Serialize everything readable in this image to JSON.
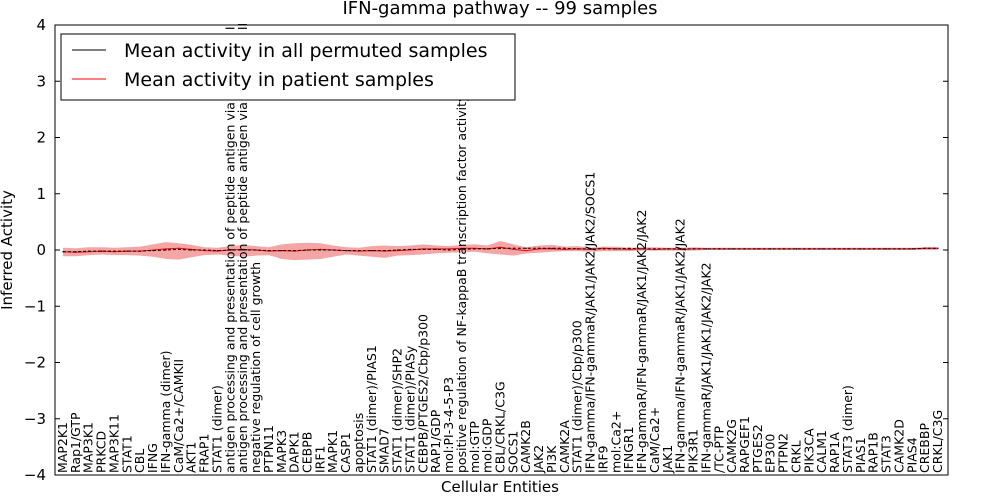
{
  "chart_data": {
    "type": "line",
    "title": "IFN-gamma pathway -- 99 samples",
    "xlabel": "Cellular Entities",
    "ylabel": "Inferred Activity",
    "ylim": [
      -4,
      4
    ],
    "yticks": [
      "4",
      "3",
      "2",
      "1",
      "0",
      "−1",
      "−2",
      "−3",
      "−4"
    ],
    "grid": false,
    "legend_position": "top-left",
    "categories": [
      "MAP2K1",
      "Rap1/GTP",
      "MAP3K1",
      "PRKCD",
      "MAP3K11",
      "STAT1",
      "CBL",
      "IFNG",
      "IFN-gamma (dimer)",
      "CaM/Ca2+/CAMKII",
      "AKT1",
      "FRAP1",
      "STAT1 (dimer)",
      "antigen processing and presentation of peptide antigen via MHC class I",
      "antigen processing and presentation of peptide antigen via MHC class II",
      "negative regulation of cell growth",
      "PTPN11",
      "MAPK3",
      "DAPK1",
      "CEBPB",
      "IRF1",
      "MAPK1",
      "CASP1",
      "apoptosis",
      "STAT1 (dimer)/PIAS1",
      "SMAD7",
      "STAT1 (dimer)/SHP2",
      "STAT1 (dimer)/PIASy",
      "CEBPB/PTGES2/Cbp/p300",
      "RAP1/GDP",
      "mol:PI-3-4-5-P3",
      "positive regulation of NF-kappaB transcription factor activity",
      "mol:GTP",
      "mol:GDP",
      "CBL/CRKL/C3G",
      "SOCS1",
      "CAMK2B",
      "JAK2",
      "PI3K",
      "CAMK2A",
      "STAT1 (dimer)/Cbp/p300",
      "IFN-gamma/IFN-gammaR/JAK1/JAK2/JAK2/SOCS1",
      "IRF9",
      "mol:Ca2+",
      "IFNGR1",
      "IFN-gammaR/IFN-gammaR/JAK1/JAK2/JAK2",
      "CaM/Ca2+",
      "JAK1",
      "IFN-gamma/IFN-gammaR/JAK1/JAK2/JAK2",
      "PIK3R1",
      "IFN-gammaR/JAK1/JAK1/JAK2/JAK2",
      "/TC-PTP",
      "CAMK2G",
      "RAPGEF1",
      "PTGES2",
      "EP300",
      "PTPN2",
      "CRKL",
      "PIK3CA",
      "CALM1",
      "RAP1A",
      "STAT3 (dimer)",
      "PIAS1",
      "RAP1B",
      "STAT3",
      "CAMK2D",
      "PIAS4",
      "CREBBP",
      "CRKL/C3G"
    ],
    "series": [
      {
        "name": "Mean activity in all permuted samples",
        "color": "#000000",
        "values": [
          -0.03,
          -0.03,
          -0.02,
          -0.02,
          -0.02,
          -0.02,
          -0.02,
          -0.01,
          0.0,
          0.01,
          0.0,
          0.0,
          -0.01,
          0.0,
          0.0,
          0.0,
          -0.01,
          -0.01,
          -0.01,
          0.0,
          0.0,
          0.0,
          -0.01,
          -0.01,
          -0.01,
          -0.01,
          0.0,
          0.01,
          0.01,
          0.01,
          0.0,
          0.01,
          0.02,
          0.02,
          0.03,
          0.03,
          0.03,
          0.03,
          0.03,
          0.03,
          0.02,
          0.02,
          0.02,
          0.02,
          0.03,
          0.02,
          0.02,
          0.02,
          0.02,
          0.02,
          0.02,
          0.02,
          0.02,
          0.02,
          0.02,
          0.02,
          0.02,
          0.02,
          0.02,
          0.02,
          0.02,
          0.02,
          0.02,
          0.02,
          0.02,
          0.02,
          0.02,
          0.03,
          0.03
        ]
      },
      {
        "name": "Mean activity in patient samples",
        "color": "#ff0000",
        "band_color": "#f08080",
        "values": [
          -0.03,
          -0.04,
          -0.03,
          -0.02,
          -0.03,
          -0.02,
          -0.02,
          0.0,
          0.02,
          0.03,
          0.01,
          -0.01,
          -0.02,
          0.0,
          0.01,
          0.0,
          -0.02,
          -0.01,
          -0.02,
          0.0,
          0.01,
          0.0,
          -0.01,
          -0.02,
          -0.01,
          -0.02,
          -0.01,
          0.0,
          0.02,
          0.02,
          0.02,
          0.03,
          0.03,
          0.02,
          0.05,
          0.01,
          -0.01,
          0.02,
          0.02,
          0.01,
          0.02,
          0.01,
          0.03,
          0.02,
          0.01,
          0.02,
          0.01,
          0.02,
          0.01,
          0.02,
          0.02,
          0.02,
          0.02,
          0.02,
          0.02,
          0.02,
          0.02,
          0.02,
          0.02,
          0.02,
          0.02,
          0.02,
          0.02,
          0.02,
          0.02,
          0.02,
          0.02,
          0.03,
          0.03
        ],
        "band_upper": [
          0.04,
          0.03,
          0.05,
          0.05,
          0.04,
          0.05,
          0.06,
          0.1,
          0.14,
          0.12,
          0.09,
          0.05,
          0.04,
          0.07,
          0.09,
          0.07,
          0.05,
          0.1,
          0.12,
          0.13,
          0.12,
          0.08,
          0.05,
          0.04,
          0.07,
          0.08,
          0.07,
          0.08,
          0.1,
          0.08,
          0.07,
          0.09,
          0.1,
          0.08,
          0.16,
          0.1,
          0.05,
          0.08,
          0.09,
          0.06,
          0.07,
          0.04,
          0.06,
          0.06,
          0.04,
          0.05,
          0.05,
          0.04,
          0.04,
          0.05,
          0.04,
          0.04,
          0.04,
          0.04,
          0.04,
          0.04,
          0.04,
          0.04,
          0.04,
          0.04,
          0.04,
          0.04,
          0.04,
          0.04,
          0.04,
          0.04,
          0.04,
          0.05,
          0.05
        ],
        "band_lower": [
          -0.11,
          -0.11,
          -0.09,
          -0.08,
          -0.09,
          -0.09,
          -0.1,
          -0.12,
          -0.16,
          -0.17,
          -0.13,
          -0.09,
          -0.08,
          -0.1,
          -0.12,
          -0.1,
          -0.09,
          -0.16,
          -0.18,
          -0.17,
          -0.16,
          -0.12,
          -0.08,
          -0.1,
          -0.12,
          -0.14,
          -0.1,
          -0.09,
          -0.08,
          -0.06,
          -0.05,
          -0.04,
          -0.03,
          -0.06,
          -0.08,
          -0.1,
          -0.06,
          -0.05,
          -0.03,
          -0.02,
          -0.02,
          -0.03,
          -0.02,
          -0.02,
          -0.02,
          -0.01,
          -0.01,
          -0.01,
          -0.01,
          -0.01,
          0.0,
          0.0,
          0.0,
          0.0,
          0.0,
          0.0,
          0.0,
          0.0,
          0.0,
          0.0,
          0.0,
          0.0,
          0.0,
          0.0,
          0.0,
          0.0,
          0.0,
          0.0,
          0.0
        ]
      }
    ]
  }
}
